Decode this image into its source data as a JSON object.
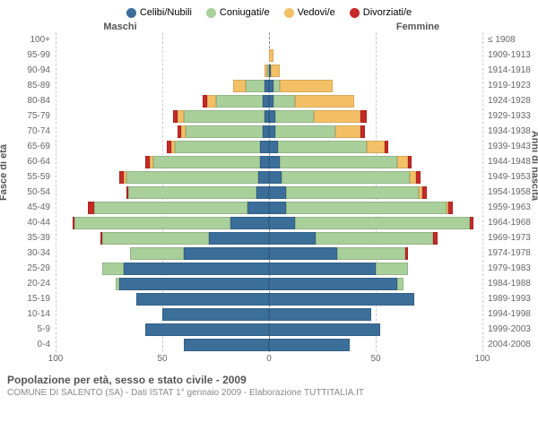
{
  "legend": [
    {
      "label": "Celibi/Nubili",
      "color": "#3b6e99"
    },
    {
      "label": "Coniugati/e",
      "color": "#a9cf9a"
    },
    {
      "label": "Vedovi/e",
      "color": "#f4c066"
    },
    {
      "label": "Divorziati/e",
      "color": "#c62828"
    }
  ],
  "headers": {
    "left": "Maschi",
    "right": "Femmine"
  },
  "axis_labels": {
    "left": "Fasce di età",
    "right": "Anni di nascita"
  },
  "xlim": 100,
  "xticks": [
    100,
    50,
    0,
    50,
    100
  ],
  "colors": {
    "celibi": "#3b6e99",
    "coniugati": "#a9cf9a",
    "vedovi": "#f4c066",
    "divorziati": "#c62828",
    "grid": "#cccccc",
    "center": "#888888",
    "bg": "#ffffff"
  },
  "age_groups": [
    "100+",
    "95-99",
    "90-94",
    "85-89",
    "80-84",
    "75-79",
    "70-74",
    "65-69",
    "60-64",
    "55-59",
    "50-54",
    "45-49",
    "40-44",
    "35-39",
    "30-34",
    "25-29",
    "20-24",
    "15-19",
    "10-14",
    "5-9",
    "0-4"
  ],
  "birth_cohorts": [
    "≤ 1908",
    "1909-1913",
    "1914-1918",
    "1919-1923",
    "1924-1928",
    "1929-1933",
    "1934-1938",
    "1939-1943",
    "1944-1948",
    "1949-1953",
    "1954-1958",
    "1959-1963",
    "1964-1968",
    "1969-1973",
    "1974-1978",
    "1979-1983",
    "1984-1988",
    "1989-1993",
    "1994-1998",
    "1999-2003",
    "2004-2008"
  ],
  "data": {
    "male": [
      {
        "c": 0,
        "m": 0,
        "w": 0,
        "d": 0
      },
      {
        "c": 0,
        "m": 0,
        "w": 0,
        "d": 0
      },
      {
        "c": 0,
        "m": 1,
        "w": 1,
        "d": 0
      },
      {
        "c": 2,
        "m": 9,
        "w": 6,
        "d": 0
      },
      {
        "c": 3,
        "m": 22,
        "w": 4,
        "d": 2
      },
      {
        "c": 2,
        "m": 38,
        "w": 3,
        "d": 2
      },
      {
        "c": 3,
        "m": 36,
        "w": 2,
        "d": 2
      },
      {
        "c": 4,
        "m": 40,
        "w": 2,
        "d": 2
      },
      {
        "c": 4,
        "m": 50,
        "w": 2,
        "d": 2
      },
      {
        "c": 5,
        "m": 62,
        "w": 1,
        "d": 2
      },
      {
        "c": 6,
        "m": 60,
        "w": 0,
        "d": 1
      },
      {
        "c": 10,
        "m": 72,
        "w": 0,
        "d": 3
      },
      {
        "c": 18,
        "m": 73,
        "w": 0,
        "d": 1
      },
      {
        "c": 28,
        "m": 50,
        "w": 0,
        "d": 1
      },
      {
        "c": 40,
        "m": 25,
        "w": 0,
        "d": 0
      },
      {
        "c": 68,
        "m": 10,
        "w": 0,
        "d": 0
      },
      {
        "c": 70,
        "m": 2,
        "w": 0,
        "d": 0
      },
      {
        "c": 62,
        "m": 0,
        "w": 0,
        "d": 0
      },
      {
        "c": 50,
        "m": 0,
        "w": 0,
        "d": 0
      },
      {
        "c": 58,
        "m": 0,
        "w": 0,
        "d": 0
      },
      {
        "c": 40,
        "m": 0,
        "w": 0,
        "d": 0
      }
    ],
    "female": [
      {
        "c": 0,
        "m": 0,
        "w": 0,
        "d": 0
      },
      {
        "c": 0,
        "m": 0,
        "w": 2,
        "d": 0
      },
      {
        "c": 1,
        "m": 0,
        "w": 4,
        "d": 0
      },
      {
        "c": 2,
        "m": 3,
        "w": 25,
        "d": 0
      },
      {
        "c": 2,
        "m": 10,
        "w": 28,
        "d": 0
      },
      {
        "c": 3,
        "m": 18,
        "w": 22,
        "d": 3
      },
      {
        "c": 3,
        "m": 28,
        "w": 12,
        "d": 2
      },
      {
        "c": 4,
        "m": 42,
        "w": 8,
        "d": 2
      },
      {
        "c": 5,
        "m": 55,
        "w": 5,
        "d": 2
      },
      {
        "c": 6,
        "m": 60,
        "w": 3,
        "d": 2
      },
      {
        "c": 8,
        "m": 62,
        "w": 2,
        "d": 2
      },
      {
        "c": 8,
        "m": 75,
        "w": 1,
        "d": 2
      },
      {
        "c": 12,
        "m": 82,
        "w": 0,
        "d": 2
      },
      {
        "c": 22,
        "m": 55,
        "w": 0,
        "d": 2
      },
      {
        "c": 32,
        "m": 32,
        "w": 0,
        "d": 1
      },
      {
        "c": 50,
        "m": 15,
        "w": 0,
        "d": 0
      },
      {
        "c": 60,
        "m": 3,
        "w": 0,
        "d": 0
      },
      {
        "c": 68,
        "m": 0,
        "w": 0,
        "d": 0
      },
      {
        "c": 48,
        "m": 0,
        "w": 0,
        "d": 0
      },
      {
        "c": 52,
        "m": 0,
        "w": 0,
        "d": 0
      },
      {
        "c": 38,
        "m": 0,
        "w": 0,
        "d": 0
      }
    ]
  },
  "footer": {
    "title": "Popolazione per età, sesso e stato civile - 2009",
    "sub": "COMUNE DI SALENTO (SA) - Dati ISTAT 1° gennaio 2009 - Elaborazione TUTTITALIA.IT"
  }
}
